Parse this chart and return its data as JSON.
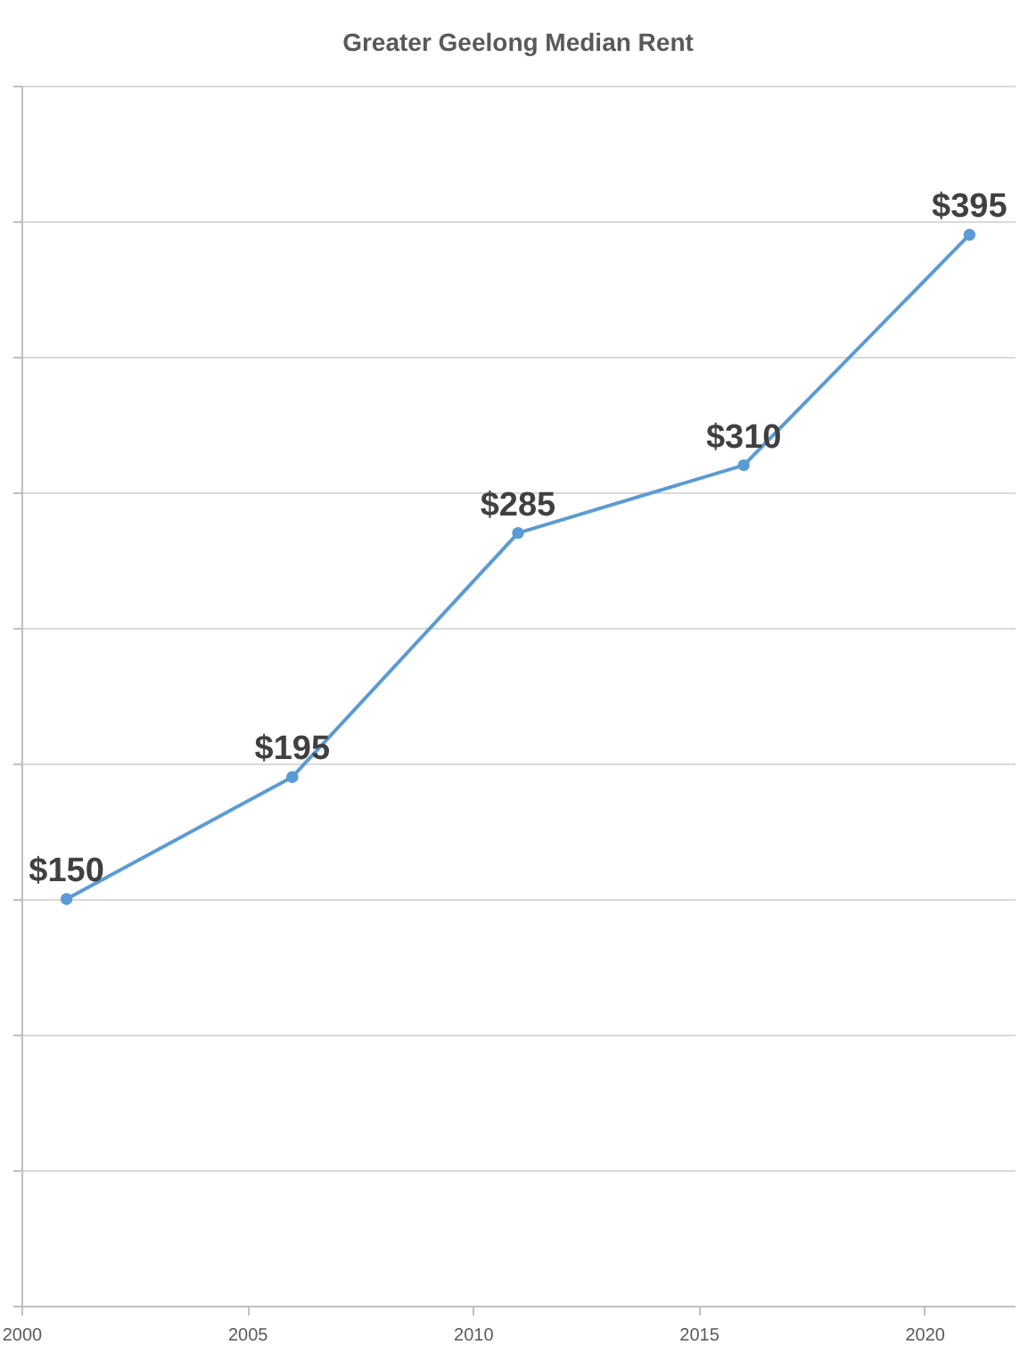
{
  "chart_data": {
    "type": "line",
    "title": "Greater Geelong Median Rent",
    "x": [
      2001,
      2006,
      2011,
      2016,
      2021
    ],
    "series": [
      {
        "color": "#5b9bd5",
        "values": [
          150,
          195,
          285,
          310,
          395
        ],
        "value_labels": [
          "$150",
          "$195",
          "$285",
          "$310",
          "$395"
        ]
      }
    ],
    "xlim": [
      2000,
      2022
    ],
    "xticks": [
      2000,
      2005,
      2010,
      2015,
      2020
    ],
    "ylim": [
      0,
      450
    ],
    "yticks": [
      {
        "value": 0,
        "label": null
      },
      {
        "value": 50,
        "label": null
      },
      {
        "value": 100,
        "label": null
      },
      {
        "value": 150,
        "label": null
      },
      {
        "value": 200,
        "label": null
      },
      {
        "value": 250,
        "label": null
      },
      {
        "value": 300,
        "label": null
      },
      {
        "value": 350,
        "label": null
      },
      {
        "value": 400,
        "label": null
      },
      {
        "value": 450,
        "label": null
      }
    ],
    "tick_labels": "x",
    "grid": "y",
    "marker": "circle",
    "line_style": "solid"
  }
}
